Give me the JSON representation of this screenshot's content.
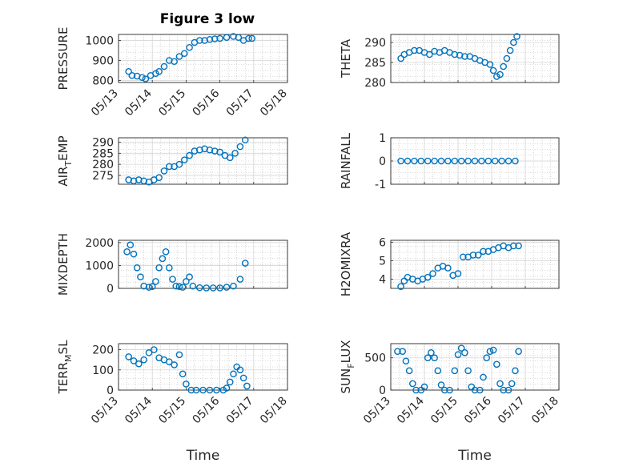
{
  "title": "Figure 3 low",
  "marker_color": "#0072BD",
  "chart_data": [
    {
      "type": "scatter",
      "ylabel": "PRESSURE",
      "yticks": [
        "800",
        "900",
        "1000"
      ],
      "ylim": [
        790,
        1030
      ],
      "xlim": [
        0,
        5
      ],
      "xticks": [
        "05/13",
        "05/14",
        "05/15",
        "05/16",
        "05/17",
        "05/18"
      ],
      "xlabel": "",
      "points": [
        [
          0.3,
          845
        ],
        [
          0.4,
          825
        ],
        [
          0.55,
          822
        ],
        [
          0.7,
          815
        ],
        [
          0.8,
          808
        ],
        [
          0.95,
          825
        ],
        [
          1.1,
          835
        ],
        [
          1.2,
          845
        ],
        [
          1.35,
          870
        ],
        [
          1.5,
          900
        ],
        [
          1.65,
          895
        ],
        [
          1.8,
          920
        ],
        [
          1.95,
          935
        ],
        [
          2.1,
          965
        ],
        [
          2.25,
          990
        ],
        [
          2.4,
          1000
        ],
        [
          2.55,
          1000
        ],
        [
          2.7,
          1005
        ],
        [
          2.85,
          1008
        ],
        [
          3.0,
          1010
        ],
        [
          3.2,
          1015
        ],
        [
          3.4,
          1020
        ],
        [
          3.55,
          1015
        ],
        [
          3.7,
          1000
        ],
        [
          3.85,
          1010
        ],
        [
          3.95,
          1010
        ]
      ]
    },
    {
      "type": "scatter",
      "ylabel": "THETA",
      "yticks": [
        "280",
        "285",
        "290"
      ],
      "ylim": [
        280,
        292
      ],
      "xlim": [
        0,
        5
      ],
      "xticks": [],
      "xlabel": "",
      "points": [
        [
          0.3,
          286
        ],
        [
          0.4,
          287
        ],
        [
          0.55,
          287.5
        ],
        [
          0.7,
          288
        ],
        [
          0.85,
          288
        ],
        [
          1.0,
          287.5
        ],
        [
          1.15,
          287
        ],
        [
          1.3,
          287.8
        ],
        [
          1.45,
          287.5
        ],
        [
          1.6,
          288
        ],
        [
          1.75,
          287.5
        ],
        [
          1.9,
          287
        ],
        [
          2.05,
          286.8
        ],
        [
          2.2,
          286.5
        ],
        [
          2.35,
          286.5
        ],
        [
          2.5,
          286
        ],
        [
          2.65,
          285.5
        ],
        [
          2.8,
          285
        ],
        [
          2.95,
          284.5
        ],
        [
          3.05,
          283
        ],
        [
          3.15,
          281.5
        ],
        [
          3.25,
          282
        ],
        [
          3.35,
          284
        ],
        [
          3.45,
          286
        ],
        [
          3.55,
          288
        ],
        [
          3.65,
          290
        ],
        [
          3.75,
          291.5
        ]
      ]
    },
    {
      "type": "scatter",
      "ylabel": "AIR_TEMP",
      "yticks": [
        "275",
        "280",
        "285",
        "290"
      ],
      "ylim": [
        271,
        292
      ],
      "xlim": [
        0,
        5
      ],
      "xticks": [],
      "xlabel": "",
      "points": [
        [
          0.3,
          273
        ],
        [
          0.45,
          272.5
        ],
        [
          0.6,
          273
        ],
        [
          0.75,
          272.5
        ],
        [
          0.9,
          272
        ],
        [
          1.05,
          273
        ],
        [
          1.2,
          274
        ],
        [
          1.35,
          277
        ],
        [
          1.5,
          279
        ],
        [
          1.65,
          279
        ],
        [
          1.8,
          280
        ],
        [
          1.95,
          282
        ],
        [
          2.1,
          284
        ],
        [
          2.25,
          286
        ],
        [
          2.4,
          286.5
        ],
        [
          2.55,
          287
        ],
        [
          2.7,
          286.5
        ],
        [
          2.85,
          286
        ],
        [
          3.0,
          285.5
        ],
        [
          3.15,
          284
        ],
        [
          3.3,
          283
        ],
        [
          3.45,
          285
        ],
        [
          3.6,
          288
        ],
        [
          3.75,
          291
        ]
      ]
    },
    {
      "type": "scatter",
      "ylabel": "RAINFALL",
      "yticks": [
        "-1",
        "0",
        "1"
      ],
      "ylim": [
        -1,
        1
      ],
      "xlim": [
        0,
        5
      ],
      "xticks": [],
      "xlabel": "",
      "points": [
        [
          0.3,
          0
        ],
        [
          0.5,
          0
        ],
        [
          0.7,
          0
        ],
        [
          0.9,
          0
        ],
        [
          1.1,
          0
        ],
        [
          1.3,
          0
        ],
        [
          1.5,
          0
        ],
        [
          1.7,
          0
        ],
        [
          1.9,
          0
        ],
        [
          2.1,
          0
        ],
        [
          2.3,
          0
        ],
        [
          2.5,
          0
        ],
        [
          2.7,
          0
        ],
        [
          2.9,
          0
        ],
        [
          3.1,
          0
        ],
        [
          3.3,
          0
        ],
        [
          3.5,
          0
        ],
        [
          3.7,
          0
        ]
      ]
    },
    {
      "type": "scatter",
      "ylabel": "MIXDEPTH",
      "yticks": [
        "0",
        "1000",
        "2000"
      ],
      "ylim": [
        0,
        2100
      ],
      "xlim": [
        0,
        5
      ],
      "xticks": [],
      "xlabel": "",
      "points": [
        [
          0.25,
          1600
        ],
        [
          0.35,
          1900
        ],
        [
          0.45,
          1500
        ],
        [
          0.55,
          900
        ],
        [
          0.65,
          500
        ],
        [
          0.75,
          100
        ],
        [
          0.9,
          50
        ],
        [
          1.0,
          80
        ],
        [
          1.1,
          300
        ],
        [
          1.2,
          900
        ],
        [
          1.3,
          1300
        ],
        [
          1.4,
          1600
        ],
        [
          1.5,
          900
        ],
        [
          1.6,
          400
        ],
        [
          1.7,
          100
        ],
        [
          1.8,
          80
        ],
        [
          1.9,
          50
        ],
        [
          2.0,
          300
        ],
        [
          2.1,
          500
        ],
        [
          2.2,
          100
        ],
        [
          2.4,
          30
        ],
        [
          2.6,
          20
        ],
        [
          2.8,
          20
        ],
        [
          3.0,
          20
        ],
        [
          3.2,
          50
        ],
        [
          3.4,
          100
        ],
        [
          3.6,
          400
        ],
        [
          3.75,
          1100
        ]
      ]
    },
    {
      "type": "scatter",
      "ylabel": "H2OMIXRA",
      "yticks": [
        "4",
        "5",
        "6"
      ],
      "ylim": [
        3.5,
        6.1
      ],
      "xlim": [
        0,
        5
      ],
      "xticks": [],
      "xlabel": "",
      "points": [
        [
          0.3,
          3.6
        ],
        [
          0.4,
          3.9
        ],
        [
          0.5,
          4.1
        ],
        [
          0.65,
          4.0
        ],
        [
          0.8,
          3.9
        ],
        [
          0.95,
          4.0
        ],
        [
          1.1,
          4.1
        ],
        [
          1.25,
          4.3
        ],
        [
          1.4,
          4.6
        ],
        [
          1.55,
          4.7
        ],
        [
          1.7,
          4.6
        ],
        [
          1.85,
          4.2
        ],
        [
          2.0,
          4.3
        ],
        [
          2.15,
          5.2
        ],
        [
          2.3,
          5.2
        ],
        [
          2.45,
          5.3
        ],
        [
          2.6,
          5.3
        ],
        [
          2.75,
          5.5
        ],
        [
          2.9,
          5.5
        ],
        [
          3.05,
          5.6
        ],
        [
          3.2,
          5.7
        ],
        [
          3.35,
          5.8
        ],
        [
          3.5,
          5.7
        ],
        [
          3.65,
          5.8
        ],
        [
          3.8,
          5.8
        ]
      ]
    },
    {
      "type": "scatter",
      "ylabel": "TERR_MSL",
      "yticks": [
        "0",
        "100",
        "200"
      ],
      "ylim": [
        0,
        230
      ],
      "xlim": [
        0,
        5
      ],
      "xticks": [
        "05/13",
        "05/14",
        "05/15",
        "05/16",
        "05/17",
        "05/18"
      ],
      "xlabel": "Time",
      "points": [
        [
          0.3,
          165
        ],
        [
          0.45,
          145
        ],
        [
          0.6,
          130
        ],
        [
          0.75,
          150
        ],
        [
          0.9,
          185
        ],
        [
          1.05,
          200
        ],
        [
          1.2,
          160
        ],
        [
          1.35,
          150
        ],
        [
          1.5,
          140
        ],
        [
          1.65,
          125
        ],
        [
          1.8,
          175
        ],
        [
          1.9,
          80
        ],
        [
          2.0,
          30
        ],
        [
          2.15,
          0
        ],
        [
          2.3,
          0
        ],
        [
          2.5,
          0
        ],
        [
          2.7,
          0
        ],
        [
          2.9,
          0
        ],
        [
          3.1,
          0
        ],
        [
          3.2,
          10
        ],
        [
          3.3,
          40
        ],
        [
          3.4,
          80
        ],
        [
          3.5,
          115
        ],
        [
          3.6,
          100
        ],
        [
          3.7,
          60
        ],
        [
          3.8,
          20
        ]
      ]
    },
    {
      "type": "scatter",
      "ylabel": "SUN_FLUX",
      "yticks": [
        "0",
        "500"
      ],
      "ylim": [
        0,
        720
      ],
      "xlim": [
        0,
        5
      ],
      "xticks": [
        "05/13",
        "05/14",
        "05/15",
        "05/16",
        "05/17",
        "05/18"
      ],
      "xlabel": "Time",
      "points": [
        [
          0.2,
          600
        ],
        [
          0.35,
          600
        ],
        [
          0.45,
          450
        ],
        [
          0.55,
          300
        ],
        [
          0.65,
          100
        ],
        [
          0.75,
          0
        ],
        [
          0.9,
          0
        ],
        [
          1.0,
          50
        ],
        [
          1.1,
          500
        ],
        [
          1.2,
          580
        ],
        [
          1.3,
          500
        ],
        [
          1.4,
          300
        ],
        [
          1.5,
          80
        ],
        [
          1.6,
          0
        ],
        [
          1.75,
          0
        ],
        [
          1.9,
          300
        ],
        [
          2.0,
          550
        ],
        [
          2.1,
          650
        ],
        [
          2.2,
          580
        ],
        [
          2.3,
          300
        ],
        [
          2.4,
          50
        ],
        [
          2.5,
          0
        ],
        [
          2.65,
          0
        ],
        [
          2.75,
          200
        ],
        [
          2.85,
          500
        ],
        [
          2.95,
          600
        ],
        [
          3.05,
          620
        ],
        [
          3.15,
          400
        ],
        [
          3.25,
          100
        ],
        [
          3.35,
          0
        ],
        [
          3.5,
          0
        ],
        [
          3.6,
          100
        ],
        [
          3.7,
          300
        ],
        [
          3.8,
          600
        ]
      ]
    }
  ]
}
